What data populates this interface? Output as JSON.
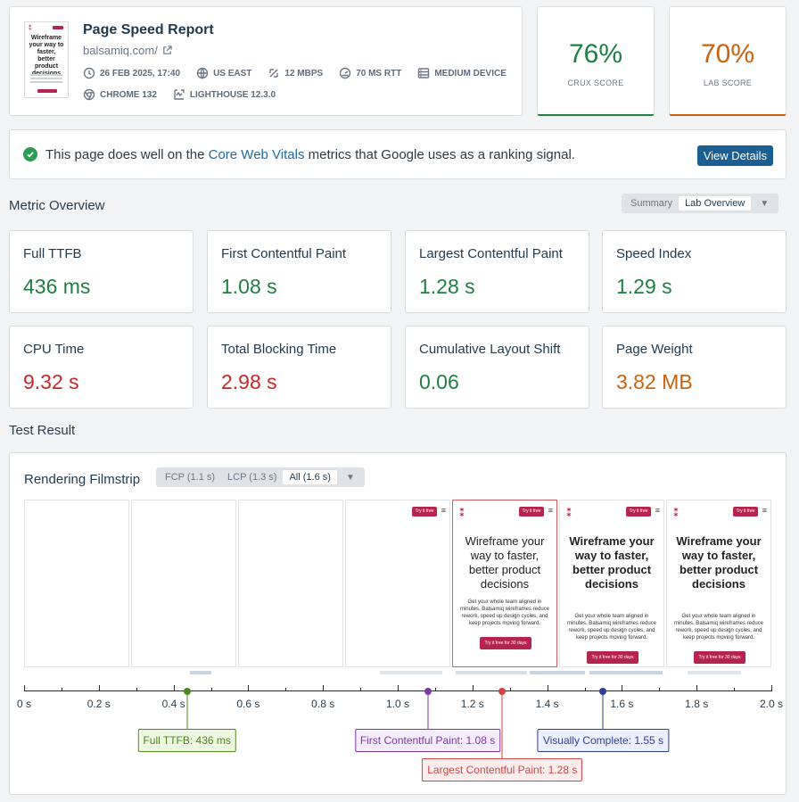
{
  "header": {
    "title": "Page Speed Report",
    "url": "balsamiq.com/",
    "meta": [
      {
        "icon": "clock-icon",
        "text": "26 FEB 2025, 17:40"
      },
      {
        "icon": "globe-icon",
        "text": "US EAST"
      },
      {
        "icon": "bandwidth-icon",
        "text": "12 MBPS"
      },
      {
        "icon": "gauge-icon",
        "text": "70 MS RTT"
      },
      {
        "icon": "device-icon",
        "text": "MEDIUM DEVICE"
      },
      {
        "icon": "chrome-icon",
        "text": "CHROME 132"
      },
      {
        "icon": "lighthouse-icon",
        "text": "LIGHTHOUSE 12.3.0"
      }
    ],
    "thumb": {
      "heading": "Wireframe your way to faster, better product decisions"
    }
  },
  "scores": {
    "crux": {
      "value": "76%",
      "label": "CRUX SCORE",
      "color": "#1e7f43"
    },
    "lab": {
      "value": "70%",
      "label": "LAB SCORE",
      "color": "#c9620f"
    }
  },
  "banner": {
    "pre": "This page does well on the ",
    "link": "Core Web Vitals",
    "post": " metrics that Google uses as a ranking signal.",
    "button": "View Details"
  },
  "overview": {
    "title": "Metric Overview",
    "toggle": [
      "Summary",
      "Lab Overview"
    ],
    "metrics": [
      {
        "name": "Full TTFB",
        "value": "436 ms",
        "status": "green"
      },
      {
        "name": "First Contentful Paint",
        "value": "1.08 s",
        "status": "green"
      },
      {
        "name": "Largest Contentful Paint",
        "value": "1.28 s",
        "status": "green"
      },
      {
        "name": "Speed Index",
        "value": "1.29 s",
        "status": "green"
      },
      {
        "name": "CPU Time",
        "value": "9.32 s",
        "status": "red"
      },
      {
        "name": "Total Blocking Time",
        "value": "2.98 s",
        "status": "red"
      },
      {
        "name": "Cumulative Layout Shift",
        "value": "0.06",
        "status": "green"
      },
      {
        "name": "Page Weight",
        "value": "3.82 MB",
        "status": "orange"
      }
    ]
  },
  "test_result": {
    "title": "Test Result",
    "filmstrip_title": "Rendering Filmstrip",
    "filter": [
      "FCP (1.1 s)",
      "LCP (1.3 s)",
      "All (1.6 s)"
    ],
    "frame_texts": {
      "try": "Try it free",
      "heading": "Wireframe your way to faster, better product decisions",
      "body": "Get your whole team aligned in minutes. Balsamiq wireframes reduce rework, speed up design cycles, and keep projects moving forward.",
      "cta1": "Try it free for 30 days",
      "cta2": "Try it free for 30 days"
    },
    "ticks": [
      "0 s",
      "0.2 s",
      "0.4 s",
      "0.6 s",
      "0.8 s",
      "1.0 s",
      "1.2 s",
      "1.4 s",
      "1.6 s",
      "1.8 s",
      "2.0 s"
    ],
    "markers": [
      {
        "label": "Full TTFB: 436 ms",
        "time": 0.436,
        "color": "#4d8a1d",
        "bg": "#eef7e2"
      },
      {
        "label": "First Contentful Paint: 1.08 s",
        "time": 1.08,
        "color": "#7b3aa6",
        "bg": "#f4ecfa"
      },
      {
        "label": "Largest Contentful Paint: 1.28 s",
        "time": 1.28,
        "color": "#d24545",
        "bg": "#fdeeee"
      },
      {
        "label": "Visually Complete: 1.55 s",
        "time": 1.55,
        "color": "#2e3e9a",
        "bg": "#ecefff"
      }
    ]
  }
}
